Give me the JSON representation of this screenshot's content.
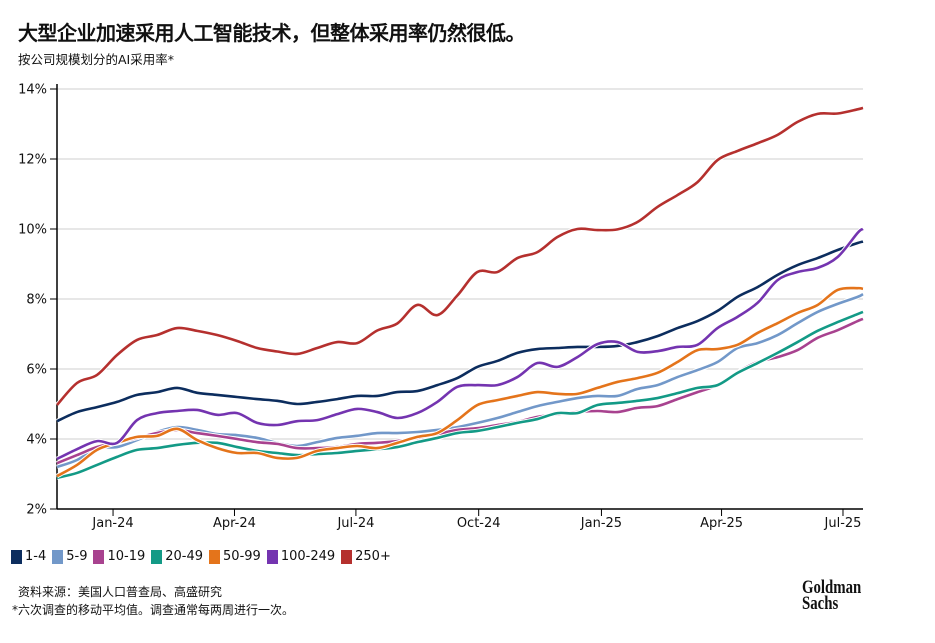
{
  "title": "大型企业加速采用人工智能技术，但整体采用率仍然很低。",
  "subtitle": "按公司规模划分的AI采用率*",
  "source": "资料来源：美国人口普查局、高盛研究",
  "note": "*六次调查的移动平均值。调查通常每两周进行一次。",
  "logo_text": "Goldman Sachs",
  "chart_data": {
    "type": "line",
    "title": "",
    "xlabel": "",
    "ylabel": "",
    "ylim": [
      2,
      14
    ],
    "yticks": [
      "2%",
      "4%",
      "6%",
      "8%",
      "10%",
      "12%",
      "14%"
    ],
    "ytick_values": [
      2,
      4,
      6,
      8,
      10,
      12,
      14
    ],
    "xticks": [
      {
        "label": "Jan-24",
        "date": "2024-01-01"
      },
      {
        "label": "Apr-24",
        "date": "2024-04-01"
      },
      {
        "label": "Jul-24",
        "date": "2024-07-01"
      },
      {
        "label": "Oct-24",
        "date": "2024-10-01"
      },
      {
        "label": "Jan-25",
        "date": "2025-01-01"
      },
      {
        "label": "Apr-25",
        "date": "2025-04-01"
      },
      {
        "label": "Jul-25",
        "date": "2025-07-01"
      }
    ],
    "xlim": [
      "2023-11-20",
      "2025-07-16"
    ],
    "grid": "horizontal",
    "legend_position": "bottom-left",
    "x": [
      "2023-11-20",
      "2023-12-05",
      "2023-12-20",
      "2024-01-04",
      "2024-01-19",
      "2024-02-03",
      "2024-02-18",
      "2024-03-04",
      "2024-03-19",
      "2024-04-03",
      "2024-04-18",
      "2024-05-03",
      "2024-05-18",
      "2024-06-02",
      "2024-06-17",
      "2024-07-02",
      "2024-07-17",
      "2024-08-01",
      "2024-08-16",
      "2024-08-31",
      "2024-09-15",
      "2024-09-30",
      "2024-10-15",
      "2024-10-30",
      "2024-11-14",
      "2024-11-29",
      "2024-12-14",
      "2024-12-29",
      "2025-01-13",
      "2025-01-28",
      "2025-02-12",
      "2025-02-27",
      "2025-03-14",
      "2025-03-29",
      "2025-04-13",
      "2025-04-28",
      "2025-05-13",
      "2025-05-28",
      "2025-06-12",
      "2025-06-27",
      "2025-07-12",
      "2025-07-16"
    ],
    "series": [
      {
        "name": "1-4",
        "color": "#0c2d5e",
        "values": [
          4.51,
          4.77,
          4.91,
          5.06,
          5.26,
          5.34,
          5.46,
          5.32,
          5.26,
          5.2,
          5.14,
          5.09,
          5.0,
          5.06,
          5.14,
          5.23,
          5.23,
          5.34,
          5.37,
          5.54,
          5.74,
          6.06,
          6.23,
          6.46,
          6.57,
          6.6,
          6.63,
          6.63,
          6.66,
          6.77,
          6.94,
          7.17,
          7.37,
          7.66,
          8.06,
          8.34,
          8.69,
          8.97,
          9.17,
          9.4,
          9.6,
          9.64
        ]
      },
      {
        "name": "5-9",
        "color": "#7298c9",
        "values": [
          3.2,
          3.4,
          3.74,
          3.77,
          3.97,
          4.2,
          4.34,
          4.26,
          4.14,
          4.11,
          4.03,
          3.89,
          3.8,
          3.91,
          4.03,
          4.09,
          4.17,
          4.17,
          4.2,
          4.26,
          4.34,
          4.46,
          4.6,
          4.77,
          4.94,
          5.06,
          5.17,
          5.23,
          5.23,
          5.43,
          5.54,
          5.77,
          5.97,
          6.2,
          6.6,
          6.74,
          6.97,
          7.31,
          7.63,
          7.86,
          8.06,
          8.14
        ]
      },
      {
        "name": "10-19",
        "color": "#a8428f",
        "values": [
          3.31,
          3.54,
          3.77,
          3.89,
          4.03,
          4.17,
          4.26,
          4.17,
          4.09,
          4.0,
          3.91,
          3.86,
          3.74,
          3.74,
          3.77,
          3.86,
          3.89,
          3.94,
          4.03,
          4.14,
          4.26,
          4.31,
          4.4,
          4.49,
          4.63,
          4.71,
          4.77,
          4.8,
          4.77,
          4.89,
          4.94,
          5.14,
          5.34,
          5.54,
          5.91,
          6.2,
          6.34,
          6.54,
          6.89,
          7.11,
          7.37,
          7.43
        ]
      },
      {
        "name": "20-49",
        "color": "#139a86",
        "values": [
          2.89,
          3.03,
          3.26,
          3.49,
          3.69,
          3.74,
          3.83,
          3.89,
          3.89,
          3.77,
          3.66,
          3.6,
          3.54,
          3.57,
          3.6,
          3.66,
          3.71,
          3.77,
          3.91,
          4.03,
          4.17,
          4.23,
          4.34,
          4.46,
          4.57,
          4.74,
          4.74,
          4.97,
          5.03,
          5.09,
          5.17,
          5.31,
          5.46,
          5.54,
          5.89,
          6.17,
          6.46,
          6.77,
          7.09,
          7.34,
          7.57,
          7.63
        ]
      },
      {
        "name": "50-99",
        "color": "#e4741b",
        "values": [
          2.94,
          3.26,
          3.69,
          3.89,
          4.06,
          4.09,
          4.29,
          3.97,
          3.74,
          3.6,
          3.6,
          3.46,
          3.46,
          3.66,
          3.74,
          3.8,
          3.74,
          3.89,
          4.06,
          4.17,
          4.54,
          4.97,
          5.11,
          5.23,
          5.34,
          5.29,
          5.29,
          5.46,
          5.63,
          5.74,
          5.89,
          6.2,
          6.54,
          6.57,
          6.69,
          7.03,
          7.31,
          7.6,
          7.83,
          8.26,
          8.31,
          8.29
        ]
      },
      {
        "name": "100-249",
        "color": "#7434b0",
        "values": [
          3.43,
          3.71,
          3.94,
          3.89,
          4.54,
          4.74,
          4.8,
          4.83,
          4.69,
          4.74,
          4.46,
          4.4,
          4.51,
          4.54,
          4.71,
          4.86,
          4.77,
          4.6,
          4.74,
          5.06,
          5.49,
          5.54,
          5.54,
          5.77,
          6.17,
          6.06,
          6.34,
          6.71,
          6.77,
          6.49,
          6.51,
          6.63,
          6.69,
          7.17,
          7.49,
          7.89,
          8.54,
          8.77,
          8.89,
          9.2,
          9.89,
          10.0
        ]
      },
      {
        "name": "250+",
        "color": "#b5302e",
        "values": [
          4.97,
          5.6,
          5.83,
          6.4,
          6.83,
          6.97,
          7.17,
          7.09,
          6.97,
          6.8,
          6.6,
          6.5,
          6.43,
          6.6,
          6.77,
          6.74,
          7.1,
          7.3,
          7.83,
          7.54,
          8.1,
          8.77,
          8.77,
          9.17,
          9.34,
          9.77,
          10.0,
          9.97,
          9.99,
          10.2,
          10.63,
          10.97,
          11.34,
          11.97,
          12.23,
          12.45,
          12.69,
          13.06,
          13.29,
          13.3,
          13.42,
          13.46
        ]
      }
    ]
  }
}
